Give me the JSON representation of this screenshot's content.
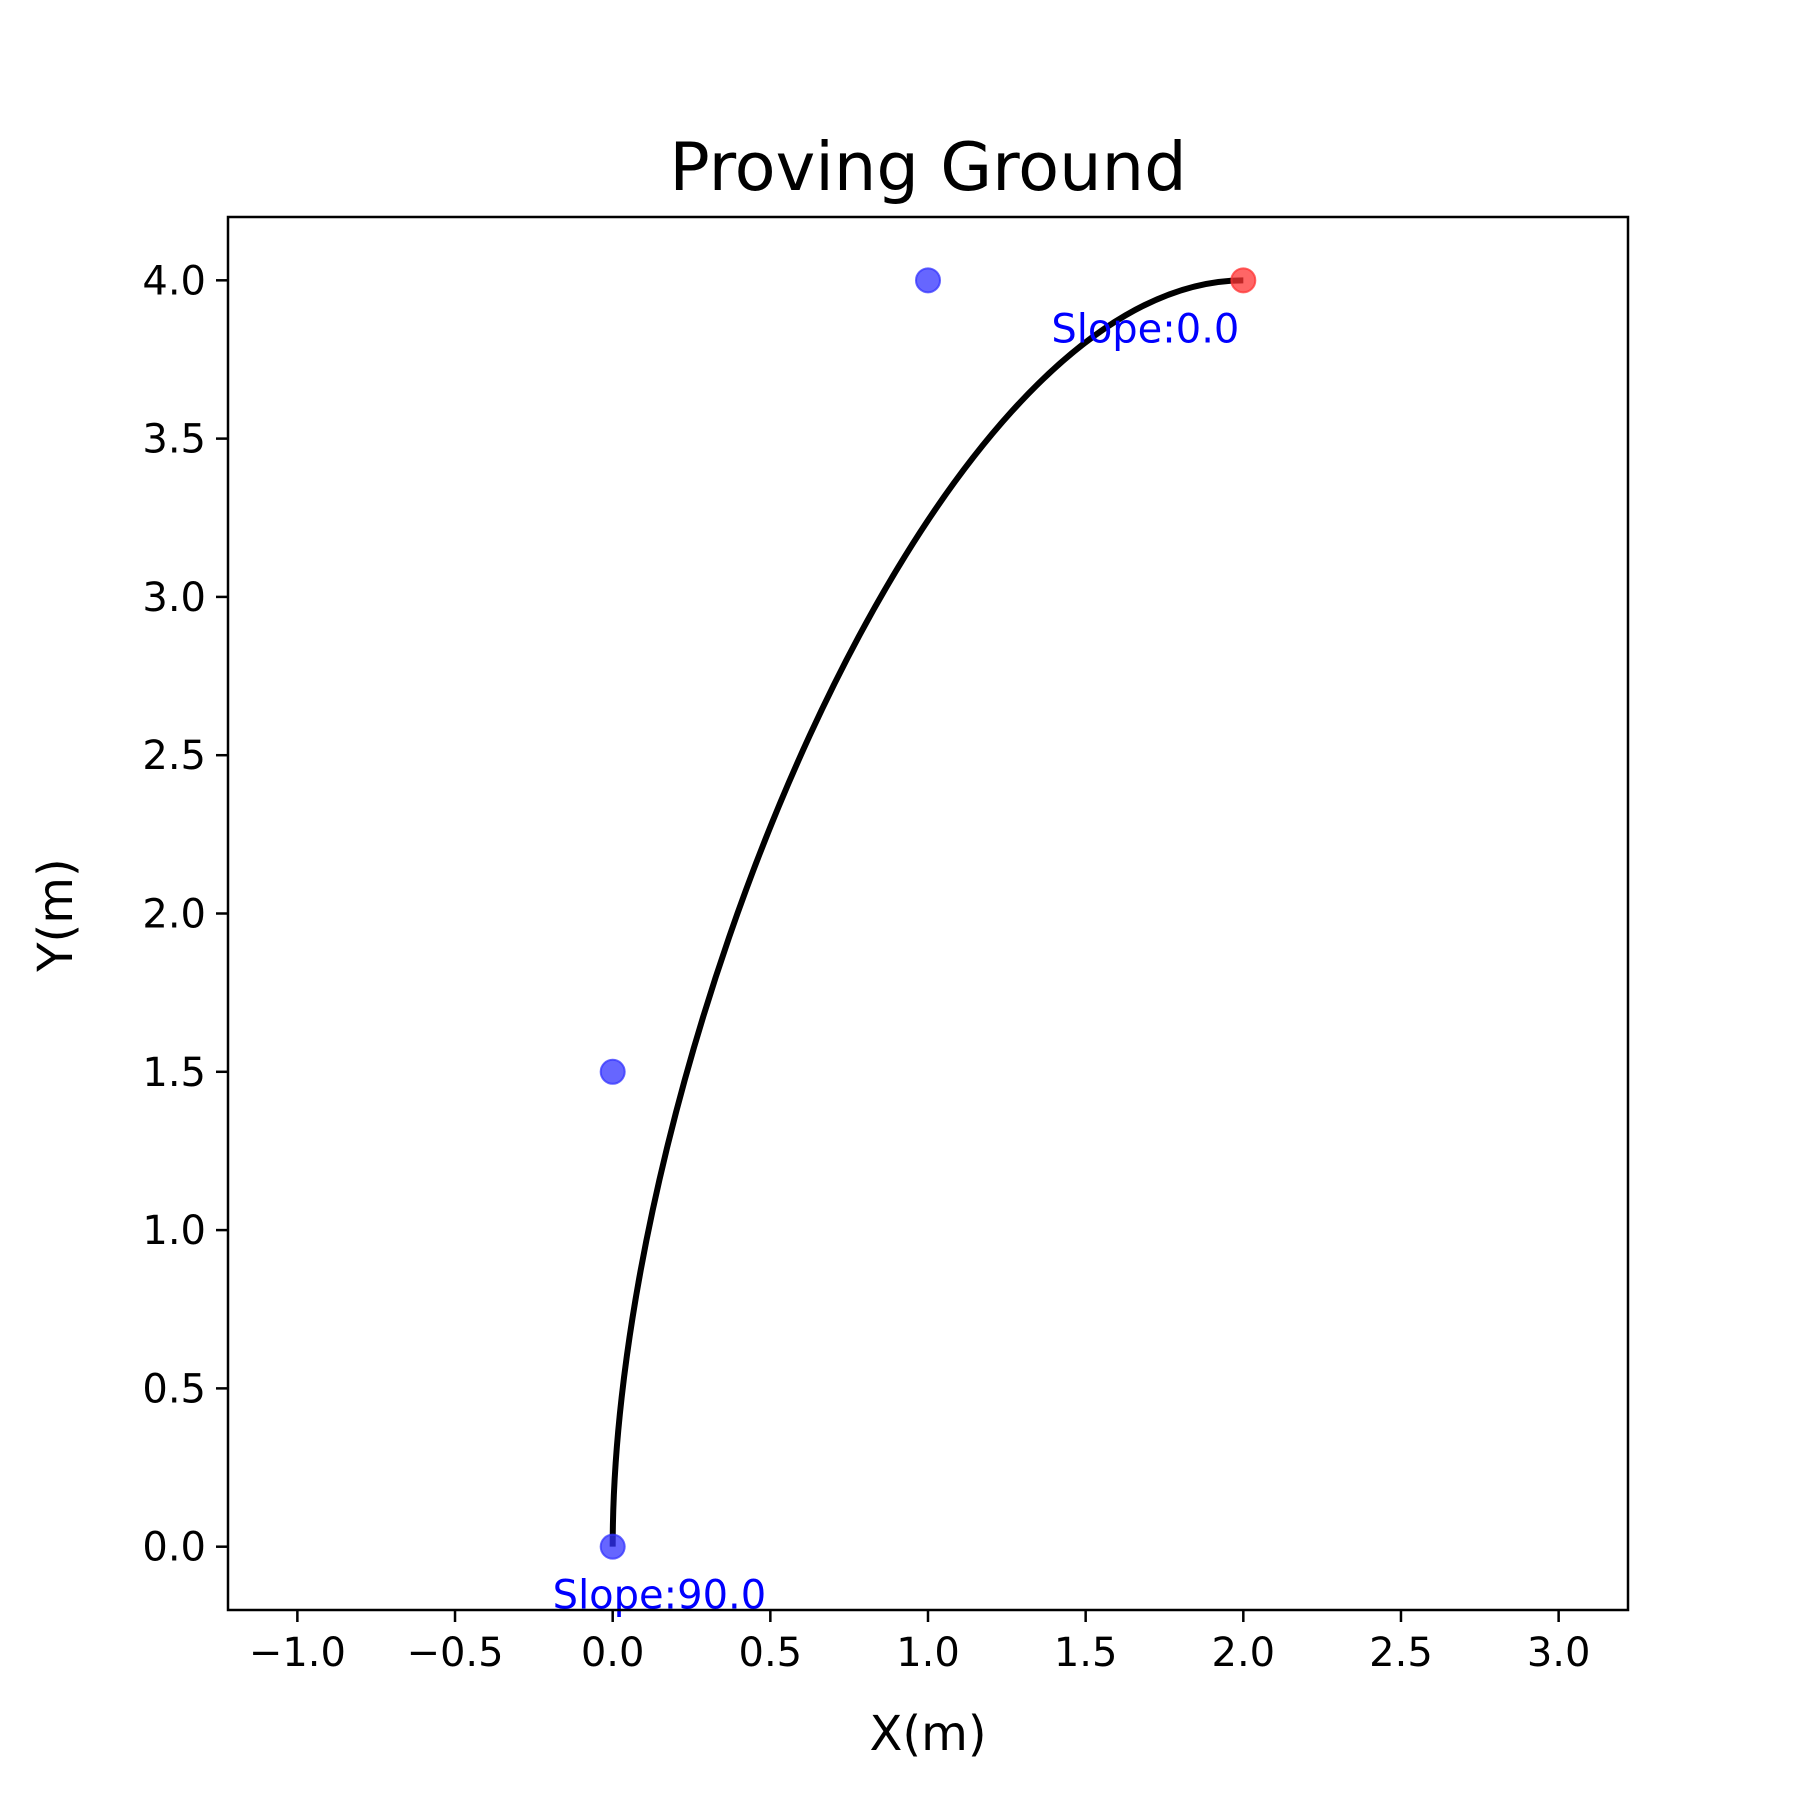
{
  "chart_data": {
    "type": "line",
    "title": "Proving Ground",
    "xlabel": "X(m)",
    "ylabel": "Y(m)",
    "xlim": [
      -1.22,
      3.22
    ],
    "ylim": [
      -0.2,
      4.2
    ],
    "xticks": [
      -1.0,
      -0.5,
      0.0,
      0.5,
      1.0,
      1.5,
      2.0,
      2.5,
      3.0
    ],
    "xtick_labels": [
      "−1.0",
      "−0.5",
      "0.0",
      "0.5",
      "1.0",
      "1.5",
      "2.0",
      "2.5",
      "3.0"
    ],
    "yticks": [
      0.0,
      0.5,
      1.0,
      1.5,
      2.0,
      2.5,
      3.0,
      3.5,
      4.0
    ],
    "ytick_labels": [
      "0.0",
      "0.5",
      "1.0",
      "1.5",
      "2.0",
      "2.5",
      "3.0",
      "3.5",
      "4.0"
    ],
    "grid": false,
    "curve": {
      "kind": "cubic-bezier",
      "control_points": [
        [
          0.0,
          0.0
        ],
        [
          0.0,
          1.5
        ],
        [
          1.0,
          4.0
        ],
        [
          2.0,
          4.0
        ]
      ],
      "color": "#000000"
    },
    "points": [
      {
        "x": 0.0,
        "y": 0.0,
        "color": "#3333ff"
      },
      {
        "x": 0.0,
        "y": 1.5,
        "color": "#3333ff"
      },
      {
        "x": 1.0,
        "y": 4.0,
        "color": "#3333ff"
      },
      {
        "x": 2.0,
        "y": 4.0,
        "color": "#ff3333"
      }
    ],
    "annotations": [
      {
        "text": "Slope:90.0",
        "x": 0.0,
        "y": 0.0,
        "color": "#0000ff"
      },
      {
        "text": "Slope:0.0",
        "x": 2.0,
        "y": 4.0,
        "color": "#0000ff"
      }
    ]
  }
}
